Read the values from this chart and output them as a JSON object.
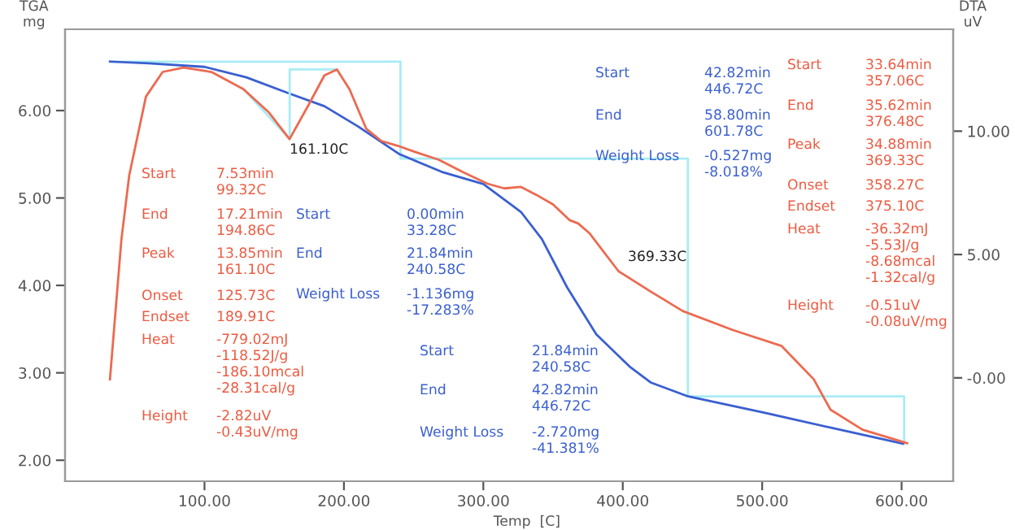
{
  "chart_data": {
    "type": "line",
    "xlabel": "Temp  [C]",
    "ylabel": "TGA\nmg",
    "y2label": "DTA\nuV",
    "xlim": [
      0,
      637
    ],
    "ylim": [
      1.76,
      6.93
    ],
    "y2lim": [
      -4.19,
      14.13
    ],
    "xticks": [
      {
        "value": 100,
        "label": "100.00"
      },
      {
        "value": 200,
        "label": "200.00"
      },
      {
        "value": 300,
        "label": "300.00"
      },
      {
        "value": 400,
        "label": "400.00"
      },
      {
        "value": 500,
        "label": "500.00"
      },
      {
        "value": 600,
        "label": "600.00"
      }
    ],
    "yticks": [
      {
        "value": 2,
        "label": "2.00"
      },
      {
        "value": 3,
        "label": "3.00"
      },
      {
        "value": 4,
        "label": "4.00"
      },
      {
        "value": 5,
        "label": "5.00"
      },
      {
        "value": 6,
        "label": "6.00"
      }
    ],
    "y2ticks": [
      {
        "value": 0,
        "label": "-0.00"
      },
      {
        "value": 5,
        "label": "5.00"
      },
      {
        "value": 10,
        "label": "10.00"
      }
    ],
    "grid": false,
    "legend": false,
    "marker": "none",
    "line_style": "solid",
    "series": [
      {
        "color": "#a8ecf4",
        "x": [
          33,
          240.6,
          240.6,
          446.7,
          446.7,
          601.8,
          601.8
        ],
        "values": [
          6.56,
          6.56,
          5.45,
          5.45,
          2.73,
          2.73,
          2.19
        ]
      },
      {
        "color": "#a8ecf4",
        "axis": "y2",
        "x": [
          128,
          161.1,
          161.1,
          195
        ],
        "values": [
          11.7,
          9.68,
          12.5,
          12.5
        ]
      },
      {
        "color": "#3a5fd0",
        "x": [
          32.2,
          60,
          100,
          130,
          160,
          186,
          210,
          240,
          270,
          300,
          327,
          342,
          360,
          381,
          405,
          420,
          447,
          500,
          550,
          601
        ],
        "values": [
          6.56,
          6.54,
          6.5,
          6.38,
          6.2,
          6.05,
          5.82,
          5.5,
          5.3,
          5.16,
          4.84,
          4.53,
          3.98,
          3.44,
          3.07,
          2.89,
          2.73,
          2.55,
          2.37,
          2.19
        ]
      },
      {
        "color": "#ec6a50",
        "axis": "y2",
        "x": [
          32.2,
          40.4,
          46,
          58,
          70,
          85,
          105,
          128,
          146,
          161,
          175,
          186,
          195,
          204,
          216,
          227,
          239,
          251,
          268,
          286,
          303,
          315,
          327,
          338,
          350,
          362,
          368,
          376,
          397,
          420,
          443,
          479,
          514,
          537,
          549,
          572,
          604
        ],
        "values": [
          -0.06,
          5.6,
          8.2,
          11.4,
          12.4,
          12.58,
          12.4,
          11.7,
          10.77,
          9.68,
          11.1,
          12.26,
          12.5,
          11.7,
          10.1,
          9.6,
          9.4,
          9.16,
          8.84,
          8.32,
          7.87,
          7.68,
          7.74,
          7.42,
          7.03,
          6.39,
          6.26,
          5.87,
          4.32,
          3.5,
          2.71,
          1.94,
          1.29,
          -0.06,
          -1.29,
          -2.1,
          -2.65
        ]
      }
    ],
    "annotations": [
      "Start",
      "7.53min\n99.32C",
      "End",
      "17.21min\n194.86C",
      "Peak",
      "13.85min\n161.10C",
      "Onset",
      "125.73C",
      "Endset",
      "189.91C",
      "Heat",
      "-779.02mJ\n-118.52J/g\n-186.10mcal\n-28.31cal/g",
      "Height",
      "-2.82uV\n-0.43uV/mg",
      "Start",
      "0.00min\n33.28C",
      "End",
      "21.84min\n240.58C",
      "Weight Loss",
      "-1.136mg\n-17.283%",
      "Start",
      "21.84min\n240.58C",
      "End",
      "42.82min\n446.72C",
      "Weight Loss",
      "-2.720mg\n-41.381%",
      "Start",
      "42.82min\n446.72C",
      "End",
      "58.80min\n601.78C",
      "Weight Loss",
      "-0.527mg\n-8.018%",
      "Start",
      "33.64min\n357.06C",
      "End",
      "35.62min\n376.48C",
      "Peak",
      "34.88min\n369.33C",
      "Onset",
      "358.27C",
      "Endset",
      "375.10C",
      "Heat",
      "-36.32mJ\n-5.53J/g\n-8.68mcal\n-1.32cal/g",
      "Height",
      "-0.51uV\n-0.08uV/mg",
      "161.10C",
      "369.33C"
    ]
  }
}
